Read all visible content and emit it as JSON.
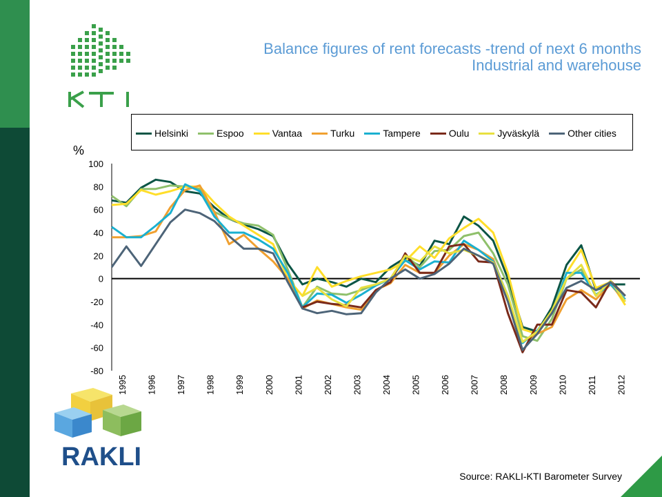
{
  "header": {
    "title_line1": "Balance figures of rent forecasts -trend of next 6 months",
    "title_line2": "Industrial and warehouse"
  },
  "logos": {
    "top": "KTI",
    "bottom": "RAKLI"
  },
  "source": "Source: RAKLI-KTI Barometer Survey",
  "colors": {
    "band_top": "#2f8f4f",
    "band_bottom": "#0e4a36",
    "title": "#5b9bd5",
    "corner": "#2e9a46"
  },
  "chart_data": {
    "type": "line",
    "ylabel": "%",
    "ylim": [
      -80,
      100
    ],
    "yticks": [
      100,
      80,
      60,
      40,
      20,
      0,
      -20,
      -40,
      -60,
      -80
    ],
    "xlim": [
      1995,
      2013
    ],
    "xticks": [
      "1995",
      "1996",
      "1997",
      "1998",
      "1999",
      "2000",
      "2001",
      "2002",
      "2003",
      "2004",
      "2005",
      "2006",
      "2007",
      "2008",
      "2009",
      "2010",
      "2011",
      "2012"
    ],
    "legend_position": "top",
    "x": [
      1995.0,
      1995.5,
      1996.0,
      1996.5,
      1997.0,
      1997.5,
      1998.0,
      1998.5,
      1999.0,
      1999.5,
      2000.0,
      2000.5,
      2001.0,
      2001.5,
      2002.0,
      2002.5,
      2003.0,
      2003.5,
      2004.0,
      2004.5,
      2005.0,
      2005.5,
      2006.0,
      2006.5,
      2007.0,
      2007.5,
      2008.0,
      2008.5,
      2009.0,
      2009.5,
      2010.0,
      2010.5,
      2011.0,
      2011.5,
      2012.0,
      2012.5
    ],
    "series": [
      {
        "name": "Helsinki",
        "color": "#0b5545",
        "values": [
          68,
          66,
          79,
          86,
          84,
          76,
          74,
          62,
          52,
          47,
          43,
          37,
          13,
          -5,
          0,
          -3,
          -7,
          0,
          -3,
          10,
          18,
          11,
          33,
          30,
          54,
          46,
          33,
          0,
          -42,
          -46,
          -25,
          12,
          29,
          -10,
          -5,
          -5
        ]
      },
      {
        "name": "Espoo",
        "color": "#8fc06b",
        "values": [
          72,
          63,
          78,
          78,
          81,
          80,
          78,
          58,
          52,
          48,
          46,
          38,
          8,
          -25,
          -7,
          -13,
          -14,
          -10,
          -5,
          0,
          20,
          10,
          24,
          25,
          37,
          40,
          22,
          -5,
          -50,
          -54,
          -35,
          0,
          8,
          -15,
          -2,
          -15
        ]
      },
      {
        "name": "Vantaa",
        "color": "#ffde2a",
        "values": [
          64,
          65,
          77,
          73,
          76,
          80,
          80,
          66,
          54,
          46,
          38,
          30,
          0,
          -15,
          10,
          -7,
          -2,
          2,
          5,
          8,
          15,
          28,
          18,
          35,
          44,
          52,
          40,
          5,
          -44,
          -48,
          -30,
          5,
          25,
          -8,
          -3,
          -23
        ]
      },
      {
        "name": "Turku",
        "color": "#f0a030",
        "values": [
          36,
          36,
          37,
          41,
          62,
          77,
          81,
          58,
          30,
          38,
          26,
          15,
          0,
          -26,
          -19,
          -22,
          -25,
          -27,
          -10,
          -4,
          12,
          5,
          5,
          20,
          30,
          25,
          17,
          -17,
          -55,
          -48,
          -42,
          -18,
          -10,
          -18,
          -5,
          -20
        ]
      },
      {
        "name": "Tampere",
        "color": "#1ab0d0",
        "values": [
          45,
          36,
          36,
          46,
          57,
          82,
          76,
          54,
          40,
          40,
          34,
          26,
          5,
          -25,
          -13,
          -14,
          -21,
          -14,
          -6,
          0,
          16,
          8,
          15,
          14,
          33,
          25,
          15,
          -15,
          -56,
          -45,
          -30,
          5,
          5,
          -14,
          -5,
          -18
        ]
      },
      {
        "name": "Oulu",
        "color": "#7a2a1a",
        "values": [
          null,
          null,
          null,
          null,
          null,
          null,
          null,
          null,
          null,
          null,
          null,
          null,
          null,
          -25,
          -20,
          -22,
          -23,
          -25,
          -10,
          -3,
          22,
          5,
          5,
          28,
          30,
          15,
          14,
          -30,
          -64,
          -40,
          -40,
          -10,
          -12,
          -25,
          -2,
          -15
        ]
      },
      {
        "name": "Jyväskylä",
        "color": "#e8e040",
        "values": [
          null,
          null,
          null,
          null,
          null,
          null,
          null,
          null,
          null,
          null,
          null,
          null,
          null,
          -15,
          -8,
          -18,
          -24,
          -8,
          -5,
          0,
          20,
          15,
          28,
          22,
          25,
          20,
          14,
          -15,
          -55,
          -46,
          -28,
          0,
          12,
          -15,
          -2,
          -20
        ]
      },
      {
        "name": "Other cities",
        "color": "#4d6478",
        "values": [
          10,
          28,
          11,
          30,
          49,
          60,
          57,
          50,
          37,
          26,
          26,
          22,
          -3,
          -26,
          -30,
          -28,
          -31,
          -30,
          -12,
          0,
          8,
          0,
          4,
          13,
          26,
          20,
          13,
          -20,
          -62,
          -48,
          -30,
          -8,
          -2,
          -10,
          -3,
          -15
        ]
      }
    ]
  }
}
